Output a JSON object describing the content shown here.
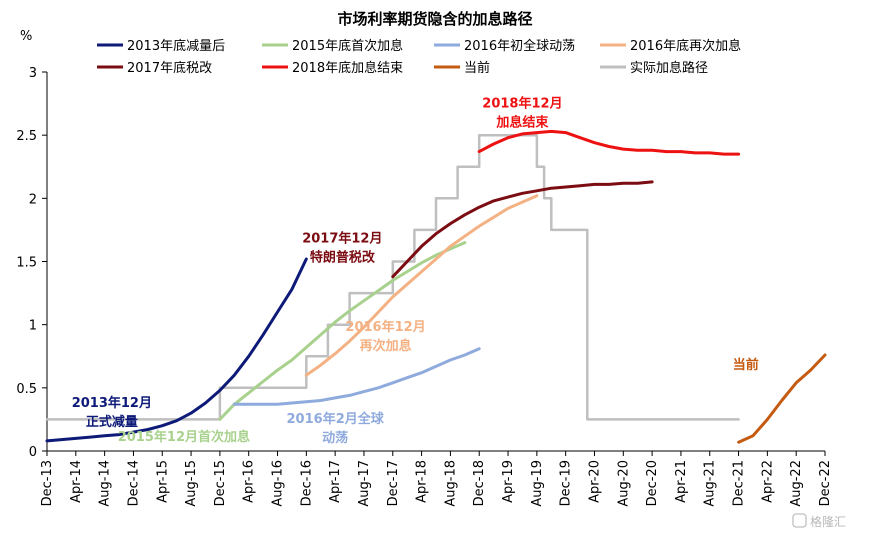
{
  "chart_data": {
    "type": "line",
    "title": "市场利率期货隐含的加息路径",
    "ylabel": "%",
    "ylim": [
      0,
      3
    ],
    "yticks": [
      0,
      0.5,
      1,
      1.5,
      2,
      2.5,
      3
    ],
    "ytick_labels": [
      "0",
      "0.5",
      "1",
      "1.5",
      "2",
      "2.5",
      "3"
    ],
    "xlim": [
      "2013-12",
      "2022-12"
    ],
    "xticks": [
      "2013-12",
      "2014-04",
      "2014-08",
      "2014-12",
      "2015-04",
      "2015-08",
      "2015-12",
      "2016-04",
      "2016-08",
      "2016-12",
      "2017-04",
      "2017-08",
      "2017-12",
      "2018-04",
      "2018-08",
      "2018-12",
      "2019-04",
      "2019-08",
      "2019-12",
      "2020-04",
      "2020-08",
      "2020-12",
      "2021-04",
      "2021-08",
      "2021-12",
      "2022-04",
      "2022-08",
      "2022-12"
    ],
    "xtick_labels": [
      "Dec-13",
      "Apr-14",
      "Aug-14",
      "Dec-14",
      "Apr-15",
      "Aug-15",
      "Dec-15",
      "Apr-16",
      "Aug-16",
      "Dec-16",
      "Apr-17",
      "Aug-17",
      "Dec-17",
      "Apr-18",
      "Aug-18",
      "Dec-18",
      "Apr-19",
      "Aug-19",
      "Dec-19",
      "Apr-20",
      "Aug-20",
      "Dec-20",
      "Apr-21",
      "Aug-21",
      "Dec-21",
      "Apr-22",
      "Aug-22",
      "Dec-22"
    ],
    "grid": false,
    "legend_position": "top",
    "series": [
      {
        "name": "2013年底减量后",
        "color": "#0d1a78",
        "points": [
          [
            "2013-12",
            0.08
          ],
          [
            "2014-02",
            0.09
          ],
          [
            "2014-04",
            0.1
          ],
          [
            "2014-06",
            0.11
          ],
          [
            "2014-08",
            0.12
          ],
          [
            "2014-10",
            0.13
          ],
          [
            "2014-12",
            0.15
          ],
          [
            "2015-02",
            0.17
          ],
          [
            "2015-04",
            0.2
          ],
          [
            "2015-06",
            0.24
          ],
          [
            "2015-08",
            0.3
          ],
          [
            "2015-10",
            0.38
          ],
          [
            "2015-12",
            0.48
          ],
          [
            "2016-02",
            0.6
          ],
          [
            "2016-04",
            0.75
          ],
          [
            "2016-06",
            0.92
          ],
          [
            "2016-08",
            1.1
          ],
          [
            "2016-10",
            1.28
          ],
          [
            "2016-12",
            1.52
          ]
        ]
      },
      {
        "name": "2015年底首次加息",
        "color": "#a9d18e",
        "points": [
          [
            "2015-12",
            0.25
          ],
          [
            "2016-02",
            0.37
          ],
          [
            "2016-04",
            0.46
          ],
          [
            "2016-06",
            0.55
          ],
          [
            "2016-08",
            0.64
          ],
          [
            "2016-10",
            0.72
          ],
          [
            "2016-12",
            0.82
          ],
          [
            "2017-02",
            0.92
          ],
          [
            "2017-04",
            1.02
          ],
          [
            "2017-06",
            1.11
          ],
          [
            "2017-08",
            1.19
          ],
          [
            "2017-10",
            1.27
          ],
          [
            "2017-12",
            1.35
          ],
          [
            "2018-02",
            1.42
          ],
          [
            "2018-04",
            1.49
          ],
          [
            "2018-06",
            1.55
          ],
          [
            "2018-08",
            1.6
          ],
          [
            "2018-10",
            1.65
          ]
        ]
      },
      {
        "name": "2016年初全球动荡",
        "color": "#8faadc",
        "points": [
          [
            "2016-02",
            0.37
          ],
          [
            "2016-04",
            0.37
          ],
          [
            "2016-06",
            0.37
          ],
          [
            "2016-08",
            0.37
          ],
          [
            "2016-10",
            0.38
          ],
          [
            "2016-12",
            0.39
          ],
          [
            "2017-02",
            0.4
          ],
          [
            "2017-04",
            0.42
          ],
          [
            "2017-06",
            0.44
          ],
          [
            "2017-08",
            0.47
          ],
          [
            "2017-10",
            0.5
          ],
          [
            "2017-12",
            0.54
          ],
          [
            "2018-02",
            0.58
          ],
          [
            "2018-04",
            0.62
          ],
          [
            "2018-06",
            0.67
          ],
          [
            "2018-08",
            0.72
          ],
          [
            "2018-10",
            0.76
          ],
          [
            "2018-12",
            0.81
          ]
        ]
      },
      {
        "name": "2016年底再次加息",
        "color": "#f4b183",
        "points": [
          [
            "2016-12",
            0.6
          ],
          [
            "2017-02",
            0.68
          ],
          [
            "2017-04",
            0.77
          ],
          [
            "2017-06",
            0.87
          ],
          [
            "2017-08",
            0.98
          ],
          [
            "2017-10",
            1.1
          ],
          [
            "2017-12",
            1.22
          ],
          [
            "2018-02",
            1.32
          ],
          [
            "2018-04",
            1.42
          ],
          [
            "2018-06",
            1.52
          ],
          [
            "2018-08",
            1.62
          ],
          [
            "2018-10",
            1.7
          ],
          [
            "2018-12",
            1.78
          ],
          [
            "2019-02",
            1.85
          ],
          [
            "2019-04",
            1.92
          ],
          [
            "2019-06",
            1.97
          ],
          [
            "2019-08",
            2.02
          ]
        ]
      },
      {
        "name": "2017年底税改",
        "color": "#7b0c12",
        "points": [
          [
            "2017-12",
            1.38
          ],
          [
            "2018-02",
            1.5
          ],
          [
            "2018-04",
            1.62
          ],
          [
            "2018-06",
            1.72
          ],
          [
            "2018-08",
            1.8
          ],
          [
            "2018-10",
            1.87
          ],
          [
            "2018-12",
            1.93
          ],
          [
            "2019-02",
            1.98
          ],
          [
            "2019-04",
            2.01
          ],
          [
            "2019-06",
            2.04
          ],
          [
            "2019-08",
            2.06
          ],
          [
            "2019-10",
            2.08
          ],
          [
            "2019-12",
            2.09
          ],
          [
            "2020-02",
            2.1
          ],
          [
            "2020-04",
            2.11
          ],
          [
            "2020-06",
            2.11
          ],
          [
            "2020-08",
            2.12
          ],
          [
            "2020-10",
            2.12
          ],
          [
            "2020-12",
            2.13
          ]
        ]
      },
      {
        "name": "2018年底加息结束",
        "color": "#ee1111",
        "points": [
          [
            "2018-12",
            2.37
          ],
          [
            "2019-02",
            2.43
          ],
          [
            "2019-04",
            2.48
          ],
          [
            "2019-06",
            2.51
          ],
          [
            "2019-08",
            2.52
          ],
          [
            "2019-10",
            2.53
          ],
          [
            "2019-12",
            2.52
          ],
          [
            "2020-02",
            2.48
          ],
          [
            "2020-04",
            2.44
          ],
          [
            "2020-06",
            2.41
          ],
          [
            "2020-08",
            2.39
          ],
          [
            "2020-10",
            2.38
          ],
          [
            "2020-12",
            2.38
          ],
          [
            "2021-02",
            2.37
          ],
          [
            "2021-04",
            2.37
          ],
          [
            "2021-06",
            2.36
          ],
          [
            "2021-08",
            2.36
          ],
          [
            "2021-10",
            2.35
          ],
          [
            "2021-12",
            2.35
          ]
        ]
      },
      {
        "name": "当前",
        "color": "#c55a11",
        "points": [
          [
            "2021-12",
            0.07
          ],
          [
            "2022-02",
            0.12
          ],
          [
            "2022-04",
            0.25
          ],
          [
            "2022-06",
            0.4
          ],
          [
            "2022-08",
            0.54
          ],
          [
            "2022-10",
            0.64
          ],
          [
            "2022-12",
            0.76
          ]
        ]
      },
      {
        "name": "实际加息路径",
        "color": "#bfbfbf",
        "step": true,
        "points": [
          [
            "2013-12",
            0.25
          ],
          [
            "2015-12",
            0.5
          ],
          [
            "2016-12",
            0.75
          ],
          [
            "2017-03",
            1.0
          ],
          [
            "2017-06",
            1.25
          ],
          [
            "2017-12",
            1.5
          ],
          [
            "2018-03",
            1.75
          ],
          [
            "2018-06",
            2.0
          ],
          [
            "2018-09",
            2.25
          ],
          [
            "2018-12",
            2.5
          ],
          [
            "2019-08",
            2.25
          ],
          [
            "2019-09",
            2.0
          ],
          [
            "2019-10",
            1.75
          ],
          [
            "2020-03",
            0.25
          ],
          [
            "2021-12",
            0.25
          ]
        ]
      }
    ],
    "annotations": [
      {
        "lines": [
          "2013年12月",
          "正式减量"
        ],
        "color": "#0d1a78",
        "x": "2014-09",
        "y": 0.35
      },
      {
        "lines": [
          "2015年12月首次加息"
        ],
        "color": "#a9d18e",
        "x": "2015-07",
        "y": 0.08
      },
      {
        "lines": [
          "2016年2月全球",
          "动荡"
        ],
        "color": "#8faadc",
        "x": "2017-04",
        "y": 0.22
      },
      {
        "lines": [
          "2016年12月",
          "再次加息"
        ],
        "color": "#f4b183",
        "x": "2017-11",
        "y": 0.95
      },
      {
        "lines": [
          "2017年12月",
          "特朗普税改"
        ],
        "color": "#7b0c12",
        "x": "2017-05",
        "y": 1.65
      },
      {
        "lines": [
          "2018年12月",
          "加息结束"
        ],
        "color": "#ee1111",
        "x": "2019-06",
        "y": 2.72
      },
      {
        "lines": [
          "当前"
        ],
        "color": "#c55a11",
        "x": "2022-01",
        "y": 0.65
      }
    ],
    "watermark": "格隆汇"
  }
}
